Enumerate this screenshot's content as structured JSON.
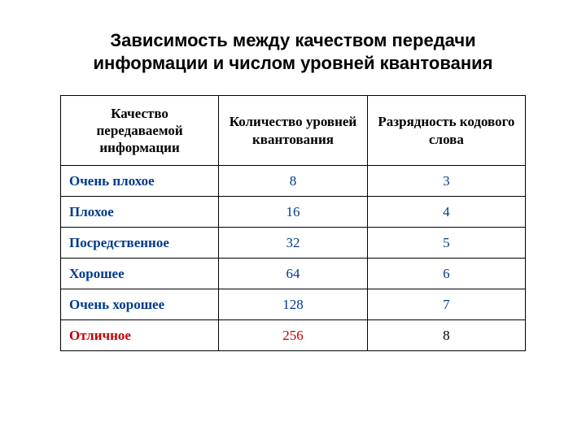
{
  "title_line1": "Зависимость между качеством передачи",
  "title_line2": "информации и числом уровней квантования",
  "colors": {
    "header_text": "#000000",
    "quality_blue": "#003a8b",
    "quality_red": "#c00000",
    "number_blue": "#003a8b",
    "number_red": "#c00000",
    "number_black": "#000000",
    "border": "#000000"
  },
  "table": {
    "col_widths_percent": [
      34,
      32,
      34
    ],
    "columns": [
      "Качество передаваемой информации",
      "Количество уровней квантования",
      "Разрядность кодового слова"
    ],
    "rows": [
      {
        "quality": "Очень плохое",
        "quality_color": "quality_blue",
        "levels": "8",
        "levels_color": "number_blue",
        "bits": "3",
        "bits_color": "number_blue"
      },
      {
        "quality": "Плохое",
        "quality_color": "quality_blue",
        "levels": "16",
        "levels_color": "number_blue",
        "bits": "4",
        "bits_color": "number_blue"
      },
      {
        "quality": "Посредственное",
        "quality_color": "quality_blue",
        "levels": "32",
        "levels_color": "number_blue",
        "bits": "5",
        "bits_color": "number_blue"
      },
      {
        "quality": "Хорошее",
        "quality_color": "quality_blue",
        "levels": "64",
        "levels_color": "number_blue",
        "bits": "6",
        "bits_color": "number_blue"
      },
      {
        "quality": "Очень хорошее",
        "quality_color": "quality_blue",
        "levels": "128",
        "levels_color": "number_blue",
        "bits": "7",
        "bits_color": "number_blue"
      },
      {
        "quality": "Отличное",
        "quality_color": "quality_red",
        "levels": "256",
        "levels_color": "number_red",
        "bits": "8",
        "bits_color": "number_black"
      }
    ]
  }
}
